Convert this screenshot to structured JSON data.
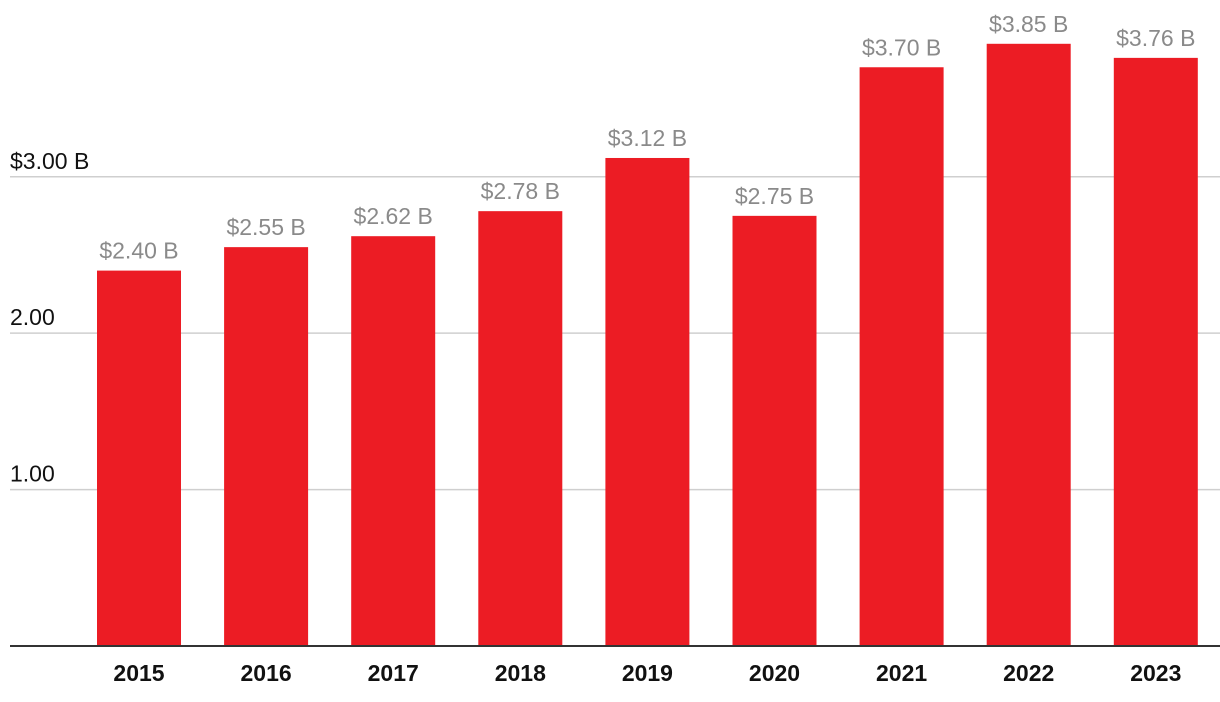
{
  "chart_data": {
    "type": "bar",
    "categories": [
      "2015",
      "2016",
      "2017",
      "2018",
      "2019",
      "2020",
      "2021",
      "2022",
      "2023"
    ],
    "values": [
      2.4,
      2.55,
      2.62,
      2.78,
      3.12,
      2.75,
      3.7,
      3.85,
      3.76
    ],
    "data_labels": [
      "$2.40 B",
      "$2.55 B",
      "$2.62 B",
      "$2.78 B",
      "$3.12 B",
      "$2.75 B",
      "$3.70 B",
      "$3.85 B",
      "$3.76 B"
    ],
    "y_ticks": [
      {
        "value": 1,
        "label": "1.00"
      },
      {
        "value": 2,
        "label": "2.00"
      },
      {
        "value": 3,
        "label": "$3.00 B"
      }
    ],
    "ylim": [
      0,
      4.13
    ],
    "grid": true,
    "legend": "none",
    "title": "",
    "xlabel": "",
    "ylabel": "",
    "colors": {
      "bar": "#ec1c24",
      "data_label": "#8a8a8a",
      "grid": "#cfcfcf",
      "axis": "#333333",
      "text": "#111111"
    }
  }
}
